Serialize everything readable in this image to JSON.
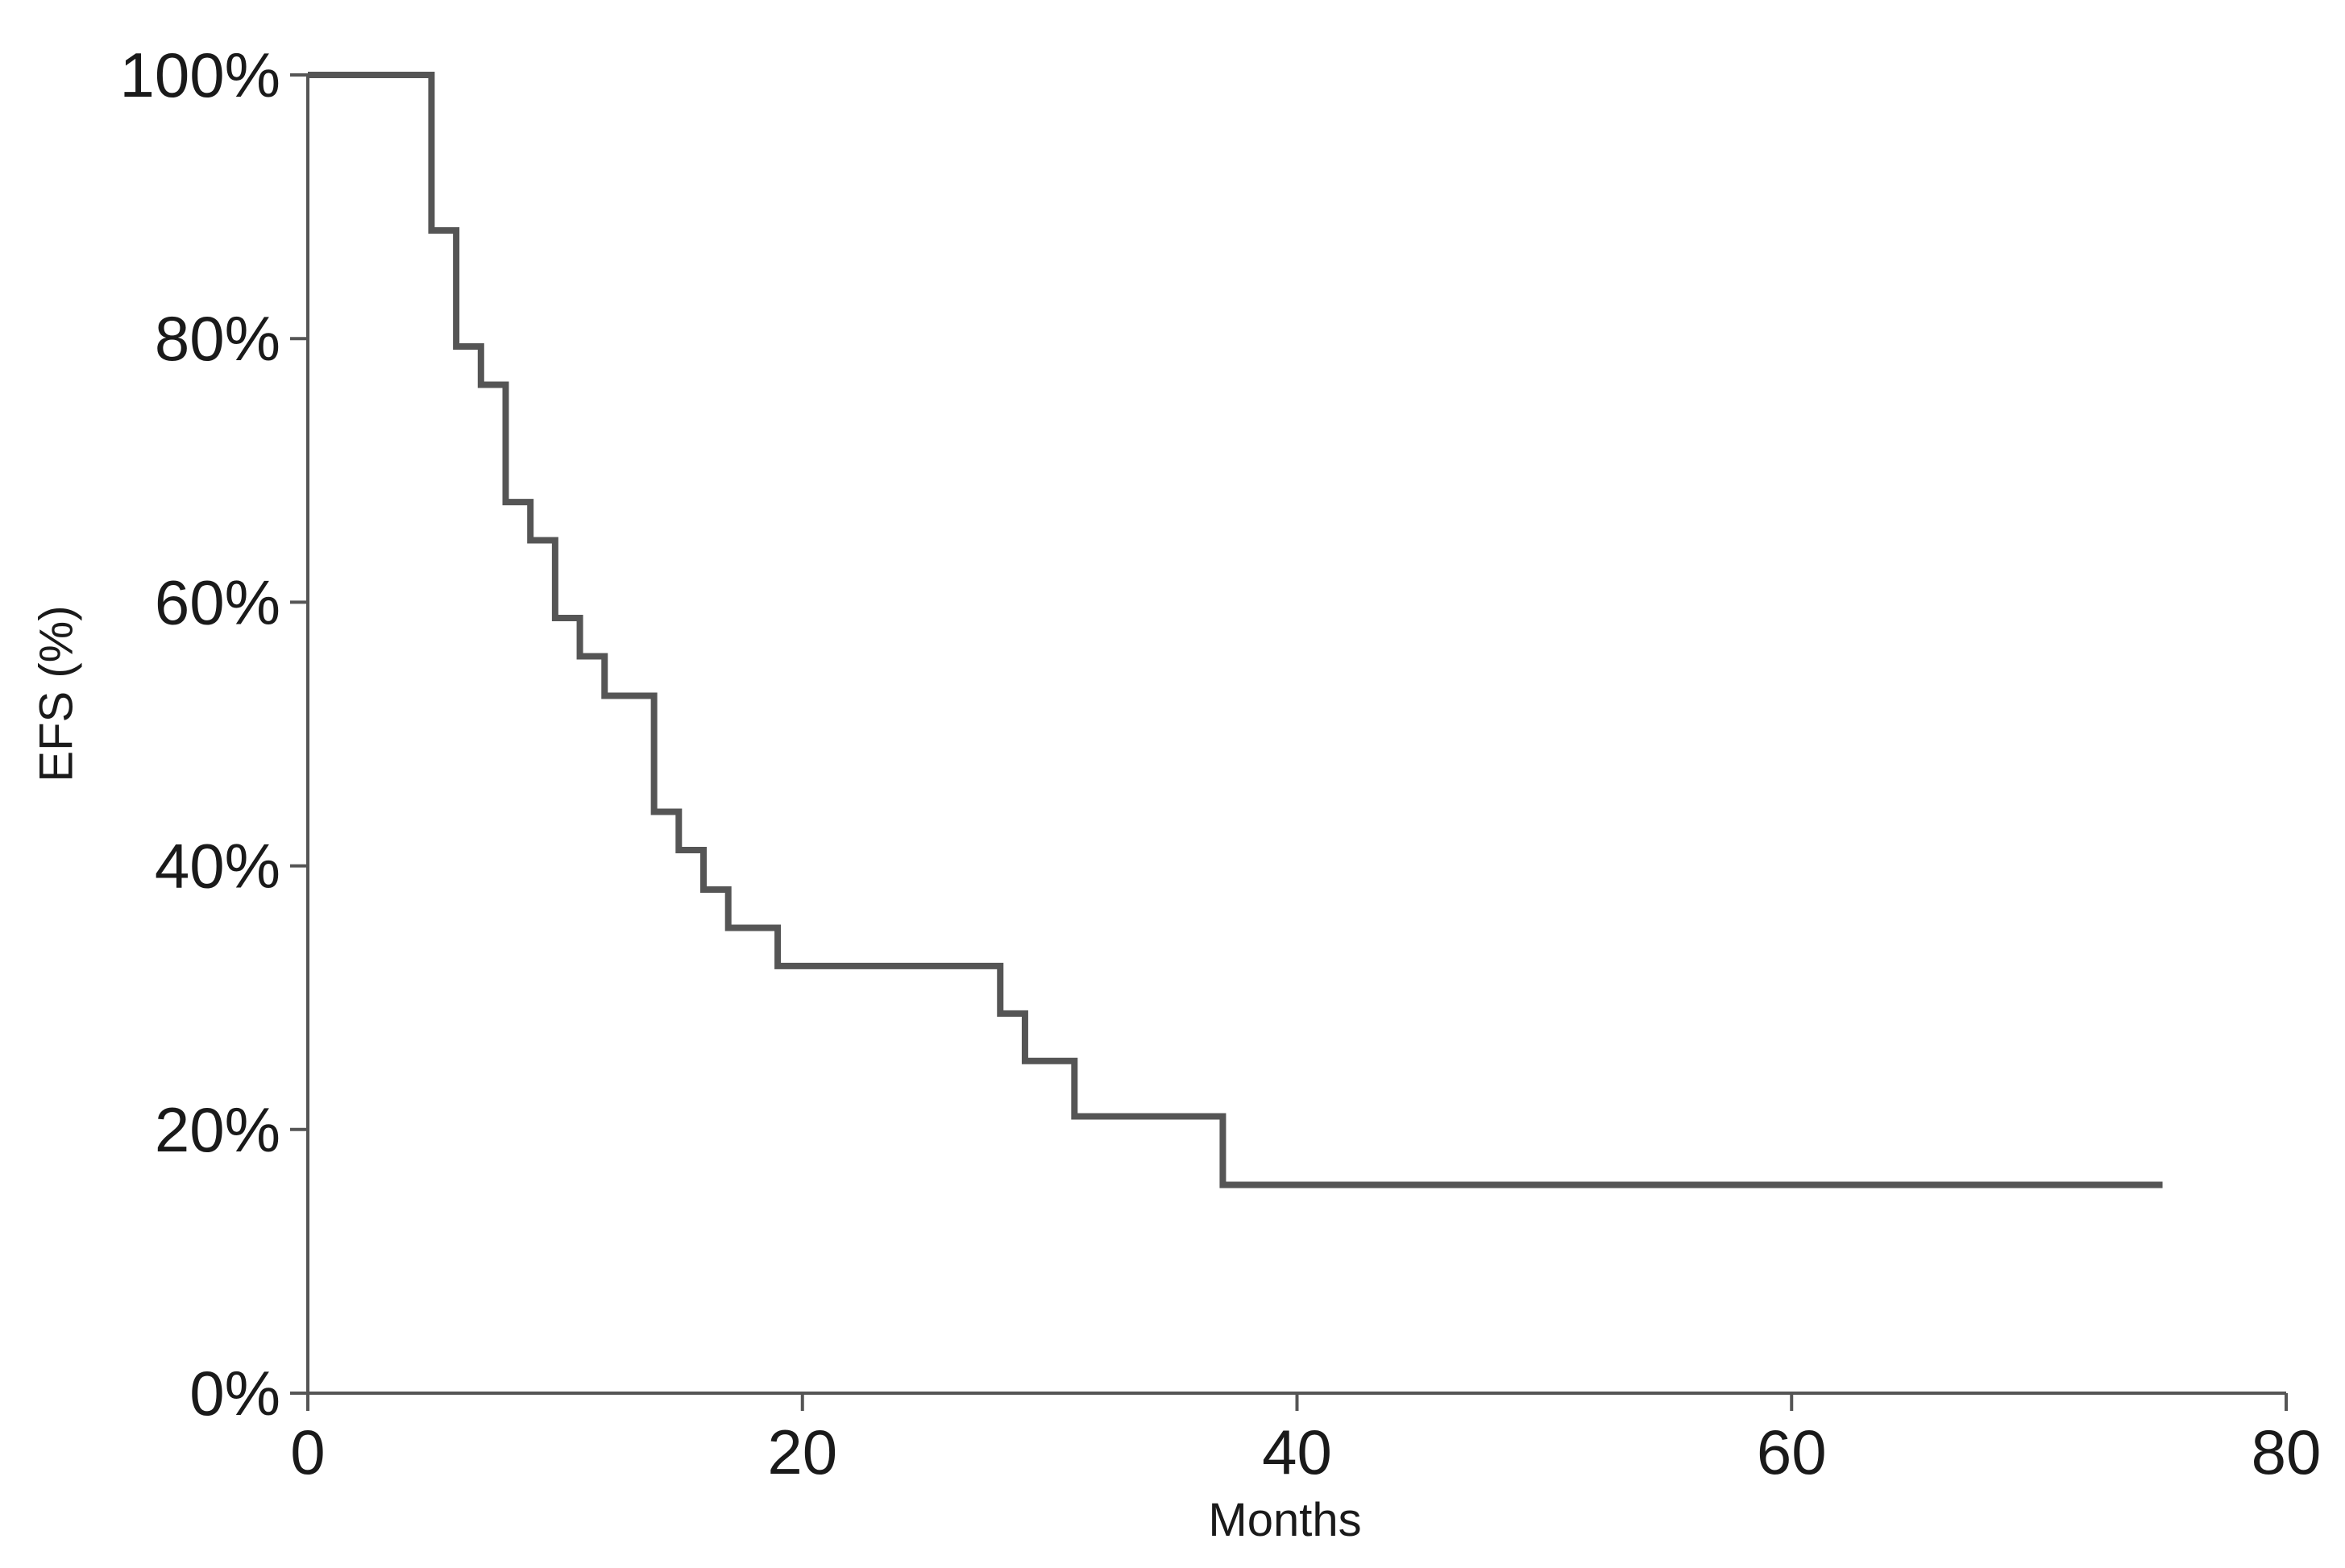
{
  "chart_data": {
    "type": "line",
    "subtype": "step",
    "title": "",
    "xlabel": "Months",
    "ylabel": "EFS (%)",
    "xlim": [
      0,
      80
    ],
    "ylim": [
      0,
      100
    ],
    "x_ticks": [
      0,
      20,
      40,
      60,
      80
    ],
    "y_ticks": [
      0,
      20,
      40,
      60,
      80,
      100
    ],
    "x_tick_labels": [
      "0",
      "20",
      "40",
      "60",
      "80"
    ],
    "y_tick_labels": [
      "0%",
      "20%",
      "40%",
      "60%",
      "80%",
      "100%"
    ],
    "grid": false,
    "legend": "none",
    "line_color": "#555555",
    "series": [
      {
        "points": [
          {
            "x": 0,
            "y": 100
          },
          {
            "x": 5,
            "y": 88.2
          },
          {
            "x": 6,
            "y": 79.4
          },
          {
            "x": 7,
            "y": 76.5
          },
          {
            "x": 8,
            "y": 67.6
          },
          {
            "x": 9,
            "y": 64.7
          },
          {
            "x": 10,
            "y": 58.8
          },
          {
            "x": 11,
            "y": 55.9
          },
          {
            "x": 12,
            "y": 52.9
          },
          {
            "x": 14,
            "y": 44.1
          },
          {
            "x": 15,
            "y": 41.2
          },
          {
            "x": 16,
            "y": 38.2
          },
          {
            "x": 17,
            "y": 35.3
          },
          {
            "x": 19,
            "y": 32.4
          },
          {
            "x": 28,
            "y": 28.8
          },
          {
            "x": 29,
            "y": 25.2
          },
          {
            "x": 31,
            "y": 21.0
          },
          {
            "x": 37,
            "y": 15.8
          },
          {
            "x": 75,
            "y": 15.8
          }
        ]
      }
    ]
  }
}
